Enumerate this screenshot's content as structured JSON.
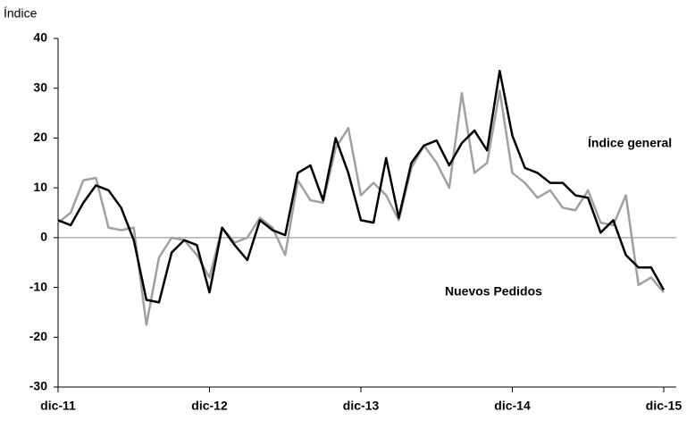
{
  "chart_data": {
    "type": "line",
    "y_label": "Índice",
    "categories": [
      "dic-11",
      null,
      null,
      null,
      null,
      null,
      null,
      null,
      null,
      null,
      null,
      null,
      "dic-12",
      null,
      null,
      null,
      null,
      null,
      null,
      null,
      null,
      null,
      null,
      null,
      "dic-13",
      null,
      null,
      null,
      null,
      null,
      null,
      null,
      null,
      null,
      null,
      null,
      "dic-14",
      null,
      null,
      null,
      null,
      null,
      null,
      null,
      null,
      null,
      null,
      null,
      "dic-15"
    ],
    "series": [
      {
        "name": "Índice general",
        "color": "#000000",
        "values": [
          3.5,
          2.5,
          7,
          10.5,
          9.5,
          6,
          -0.5,
          -12.5,
          -13,
          -3,
          -0.5,
          -1.5,
          -11,
          2,
          -1.5,
          -4.5,
          3.5,
          1.5,
          0.5,
          13,
          14.5,
          7.5,
          20,
          13,
          3.5,
          3,
          16,
          4,
          15,
          18.5,
          19.5,
          14.5,
          19,
          21.5,
          17.5,
          33.5,
          20.5,
          14,
          13,
          11,
          11,
          8.5,
          8,
          1,
          3.5,
          -3.5,
          -6,
          -6,
          -10.5
        ]
      },
      {
        "name": "Nuevos Pedidos",
        "color": "#a0a0a0",
        "values": [
          3,
          5,
          11.5,
          12,
          2,
          1.5,
          2,
          -17.5,
          -4,
          0,
          -0.5,
          -3.5,
          -8,
          2,
          -1,
          0,
          4,
          2,
          -3.5,
          11.5,
          7.5,
          7,
          18,
          22,
          8.5,
          11,
          8.5,
          3.5,
          14,
          18.5,
          15,
          10,
          29,
          13,
          15,
          29.5,
          13,
          11,
          8,
          9.5,
          6,
          5.5,
          9.5,
          3,
          2.5,
          8.5,
          -9.5,
          -8,
          -11
        ]
      }
    ],
    "ylim": [
      -30,
      40
    ],
    "yticks": [
      -30,
      -20,
      -10,
      0,
      10,
      20,
      30,
      40
    ]
  }
}
